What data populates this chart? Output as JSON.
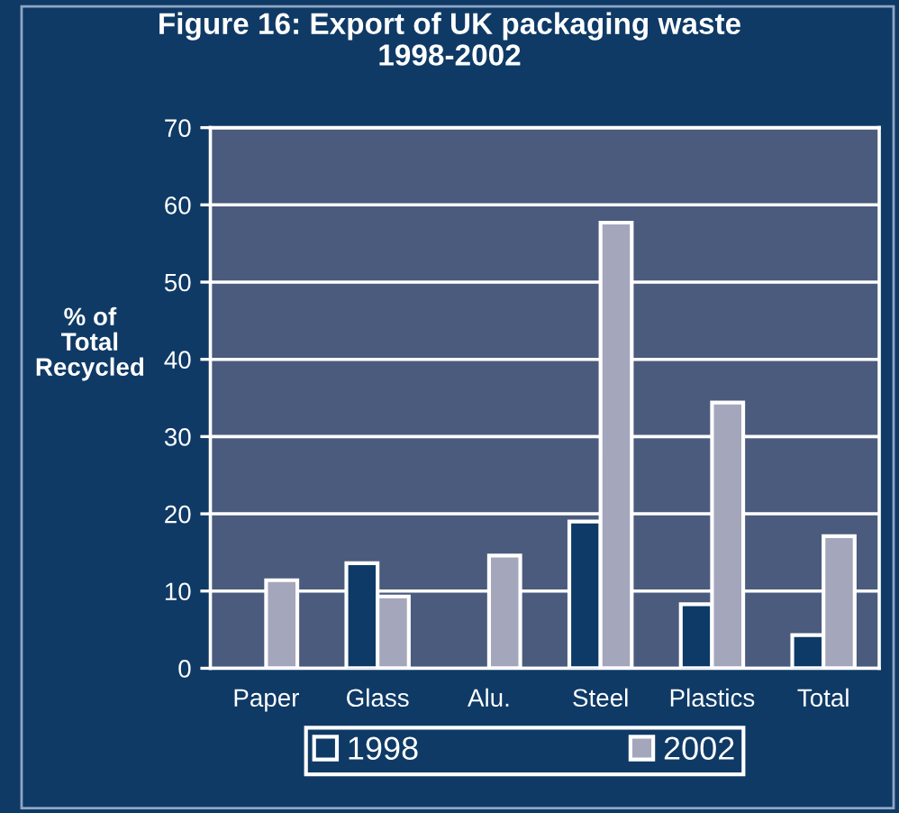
{
  "chart_data": {
    "type": "bar",
    "title": "Figure 16: Export of UK packaging waste\n1998-2002",
    "ylabel": "% of\nTotal\nRecycled",
    "categories": [
      "Paper",
      "Glass",
      "Alu.",
      "Steel",
      "Plastics",
      "Total"
    ],
    "series": [
      {
        "name": "1998",
        "color": "#0d3a66",
        "values": [
          null,
          13.6,
          null,
          19.0,
          8.3,
          4.3
        ]
      },
      {
        "name": "2002",
        "color": "#a4a6bc",
        "values": [
          11.4,
          9.3,
          14.6,
          57.7,
          34.4,
          17.1
        ]
      }
    ],
    "ylim": [
      0,
      70
    ],
    "yticks": [
      0,
      10,
      20,
      30,
      40,
      50,
      60,
      70
    ],
    "grid": "y",
    "legend": "bottom"
  }
}
